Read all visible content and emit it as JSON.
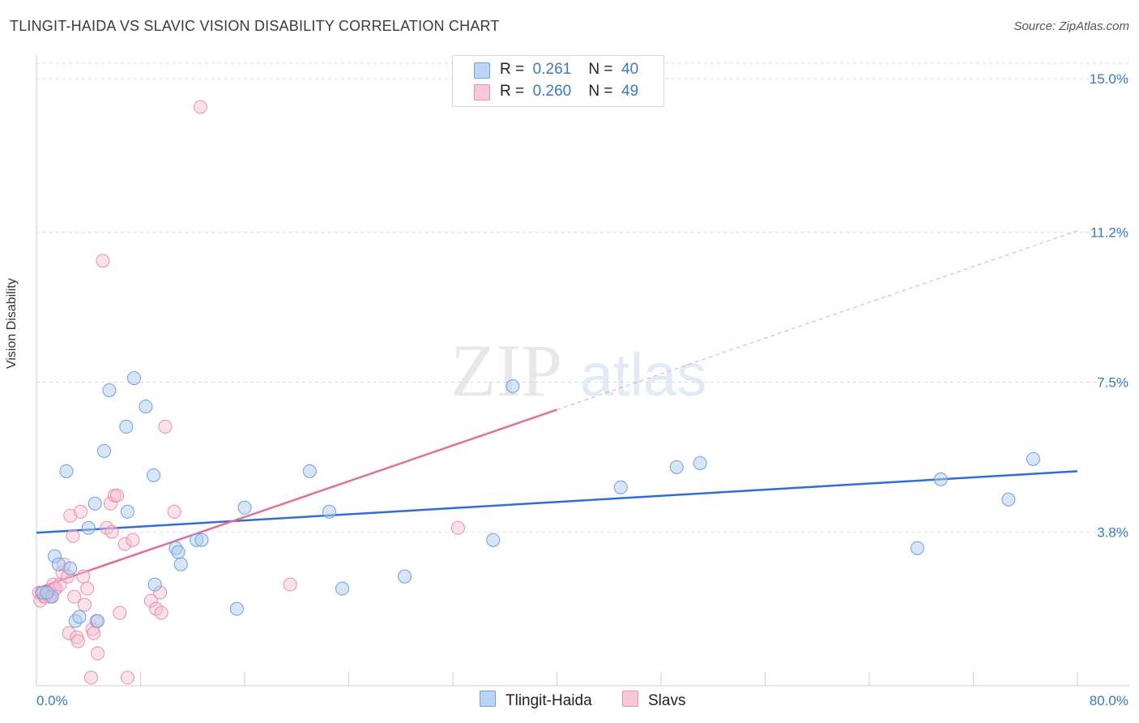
{
  "title": "TLINGIT-HAIDA VS SLAVIC VISION DISABILITY CORRELATION CHART",
  "source": "Source: ZipAtlas.com",
  "watermark": {
    "zip": "ZIP",
    "atlas": "atlas"
  },
  "legend": [
    {
      "r_label": "R =",
      "r_value": "0.261",
      "n_label": "N =",
      "n_value": "40"
    },
    {
      "r_label": "R =",
      "r_value": "0.260",
      "n_label": "N =",
      "n_value": "49"
    }
  ],
  "bottom_legend": [
    {
      "label": "Tlingit-Haida"
    },
    {
      "label": "Slavs"
    }
  ],
  "colors": {
    "blue_fill": "#aecbf2",
    "blue_stroke": "#6f9fdc",
    "blue_line": "#2f6fce",
    "pink_fill": "#f7bdd0",
    "pink_stroke": "#e78fae",
    "pink_line": "#e0709a",
    "axis_text": "#3a78c9",
    "grid": "#dddddd"
  },
  "chart_data": {
    "type": "scatter",
    "title": "TLINGIT-HAIDA VS SLAVIC VISION DISABILITY CORRELATION CHART",
    "xlabel": "",
    "ylabel": "Vision Disability",
    "xlim": [
      0,
      80
    ],
    "ylim": [
      0,
      15.5
    ],
    "x_tick_labels": [
      {
        "value": 0,
        "label": "0.0%"
      },
      {
        "value": 80,
        "label": "80.0%"
      }
    ],
    "y_ticks": [
      {
        "value": 3.8,
        "label": "3.8%"
      },
      {
        "value": 7.5,
        "label": "7.5%"
      },
      {
        "value": 11.2,
        "label": "11.2%"
      },
      {
        "value": 15.0,
        "label": "15.0%"
      }
    ],
    "series": [
      {
        "name": "Tlingit-Haida",
        "points": [
          [
            0.5,
            2.3
          ],
          [
            1.2,
            2.2
          ],
          [
            1.4,
            3.2
          ],
          [
            1.7,
            3.0
          ],
          [
            2.3,
            5.3
          ],
          [
            2.6,
            2.9
          ],
          [
            3.0,
            1.6
          ],
          [
            3.3,
            1.7
          ],
          [
            4.0,
            3.9
          ],
          [
            4.5,
            4.5
          ],
          [
            4.7,
            1.6
          ],
          [
            5.2,
            5.8
          ],
          [
            5.6,
            7.3
          ],
          [
            6.9,
            6.4
          ],
          [
            7.0,
            4.3
          ],
          [
            7.5,
            7.6
          ],
          [
            8.4,
            6.9
          ],
          [
            9.0,
            5.2
          ],
          [
            9.1,
            2.5
          ],
          [
            10.7,
            3.4
          ],
          [
            10.9,
            3.3
          ],
          [
            11.1,
            3.0
          ],
          [
            12.3,
            3.6
          ],
          [
            12.7,
            3.6
          ],
          [
            15.4,
            1.9
          ],
          [
            16.0,
            4.4
          ],
          [
            21.0,
            5.3
          ],
          [
            22.5,
            4.3
          ],
          [
            23.5,
            2.4
          ],
          [
            28.3,
            2.7
          ],
          [
            35.1,
            3.6
          ],
          [
            36.6,
            7.4
          ],
          [
            44.9,
            4.9
          ],
          [
            49.2,
            5.4
          ],
          [
            51.0,
            5.5
          ],
          [
            67.7,
            3.4
          ],
          [
            69.5,
            5.1
          ],
          [
            74.7,
            4.6
          ],
          [
            76.6,
            5.6
          ],
          [
            0.8,
            2.3
          ]
        ],
        "trend": {
          "x": [
            0,
            80
          ],
          "y": [
            3.78,
            5.3
          ]
        }
      },
      {
        "name": "Slavs",
        "points": [
          [
            0.2,
            2.3
          ],
          [
            0.3,
            2.1
          ],
          [
            0.6,
            2.2
          ],
          [
            0.9,
            2.3
          ],
          [
            1.1,
            2.2
          ],
          [
            1.3,
            2.5
          ],
          [
            1.4,
            2.4
          ],
          [
            1.5,
            2.4
          ],
          [
            1.8,
            2.5
          ],
          [
            2.0,
            2.8
          ],
          [
            2.1,
            3.0
          ],
          [
            2.4,
            2.7
          ],
          [
            2.5,
            1.3
          ],
          [
            2.6,
            4.2
          ],
          [
            2.8,
            3.7
          ],
          [
            2.9,
            2.2
          ],
          [
            3.1,
            1.2
          ],
          [
            3.2,
            1.1
          ],
          [
            3.4,
            4.3
          ],
          [
            3.6,
            2.7
          ],
          [
            3.7,
            2.0
          ],
          [
            3.9,
            2.4
          ],
          [
            4.3,
            1.4
          ],
          [
            4.4,
            1.3
          ],
          [
            4.6,
            1.6
          ],
          [
            4.7,
            0.8
          ],
          [
            5.1,
            10.5
          ],
          [
            5.4,
            3.9
          ],
          [
            5.7,
            4.5
          ],
          [
            5.8,
            3.8
          ],
          [
            6.0,
            4.7
          ],
          [
            6.2,
            4.7
          ],
          [
            6.4,
            1.8
          ],
          [
            6.8,
            3.5
          ],
          [
            7.0,
            0.2
          ],
          [
            7.4,
            3.6
          ],
          [
            8.8,
            2.1
          ],
          [
            9.2,
            1.9
          ],
          [
            9.5,
            2.3
          ],
          [
            9.6,
            1.8
          ],
          [
            9.9,
            6.4
          ],
          [
            10.6,
            4.3
          ],
          [
            12.6,
            14.3
          ],
          [
            19.5,
            2.5
          ],
          [
            32.4,
            3.9
          ],
          [
            0.4,
            2.3
          ],
          [
            0.7,
            2.2
          ],
          [
            4.2,
            0.2
          ],
          [
            1.0,
            2.2
          ]
        ],
        "trend": {
          "x": [
            0,
            40
          ],
          "y": [
            2.4,
            6.82
          ]
        },
        "trend_extension": {
          "x": [
            40,
            80
          ],
          "y": [
            6.82,
            11.24
          ]
        }
      }
    ]
  }
}
